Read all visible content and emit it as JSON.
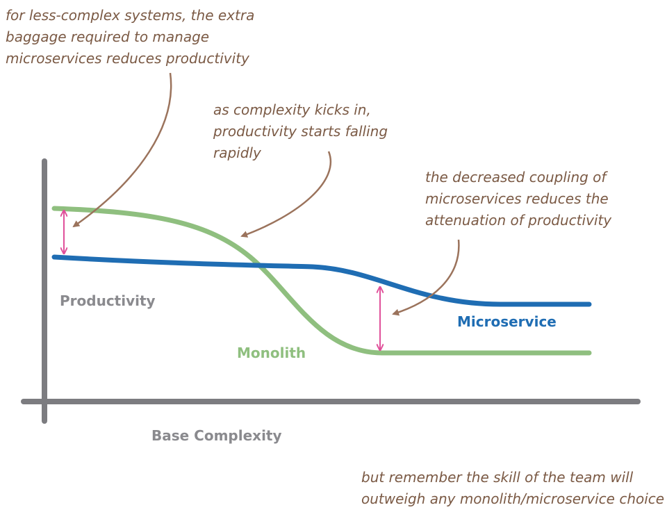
{
  "axes": {
    "y_label": "Productivity",
    "x_label": "Base Complexity"
  },
  "curve_labels": {
    "microservice": "Microservice",
    "monolith": "Monolith"
  },
  "annotations": [
    {
      "lines": [
        "for less-complex systems, the extra",
        "baggage required to manage",
        "microservices reduces productivity"
      ]
    },
    {
      "lines": [
        "as complexity kicks in,",
        "productivity starts falling",
        "rapidly"
      ]
    },
    {
      "lines": [
        "the decreased coupling of",
        "microservices reduces the",
        "attenuation of productivity"
      ]
    },
    {
      "lines": [
        "but remember the skill of the team will",
        "outweigh any monolith/microservice choice"
      ]
    }
  ]
}
